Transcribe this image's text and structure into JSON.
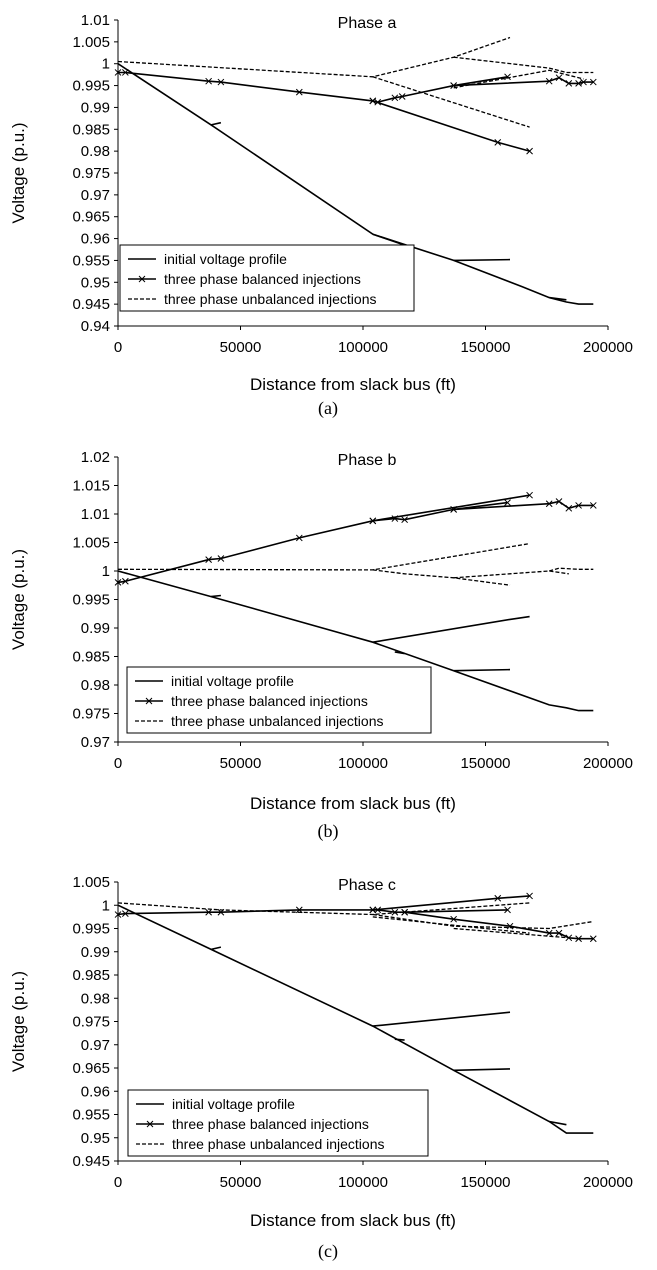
{
  "chart_data": [
    {
      "type": "line",
      "title": "Phase a",
      "caption": "(a)",
      "xlabel": "Distance from slack bus (ft)",
      "ylabel": "Voltage (p.u.)",
      "xlim": [
        0,
        200000
      ],
      "ylim": [
        0.94,
        1.01
      ],
      "xticks": [
        "0",
        "50000",
        "100000",
        "150000",
        "200000"
      ],
      "yticks": [
        "0.94",
        "0.945",
        "0.95",
        "0.955",
        "0.96",
        "0.965",
        "0.97",
        "0.975",
        "0.98",
        "0.985",
        "0.99",
        "0.995",
        "1",
        "1.005",
        "1.01"
      ],
      "legend_position": "bottom-left",
      "series": [
        {
          "name": "initial voltage profile",
          "style": "solid",
          "segments": [
            [
              [
                0,
                1.0
              ],
              [
                38000,
                0.986
              ],
              [
                104000,
                0.961
              ],
              [
                137000,
                0.955
              ],
              [
                165000,
                0.949
              ],
              [
                176000,
                0.9465
              ],
              [
                183000,
                0.9455
              ],
              [
                188000,
                0.945
              ],
              [
                194000,
                0.945
              ]
            ],
            [
              [
                38000,
                0.986
              ],
              [
                42000,
                0.9865
              ]
            ],
            [
              [
                104000,
                0.961
              ],
              [
                117000,
                0.9585
              ]
            ],
            [
              [
                137000,
                0.955
              ],
              [
                160000,
                0.9552
              ]
            ],
            [
              [
                176000,
                0.9465
              ],
              [
                183000,
                0.946
              ]
            ]
          ]
        },
        {
          "name": "three phase balanced injections",
          "style": "solid-x",
          "segments": [
            [
              [
                0,
                0.998
              ],
              [
                3000,
                0.998
              ],
              [
                37000,
                0.996
              ],
              [
                42000,
                0.9958
              ],
              [
                74000,
                0.9935
              ],
              [
                104000,
                0.9915
              ],
              [
                106000,
                0.9912
              ],
              [
                113000,
                0.9922
              ],
              [
                116000,
                0.9925
              ],
              [
                137000,
                0.995
              ],
              [
                176000,
                0.996
              ],
              [
                180000,
                0.9968
              ],
              [
                184000,
                0.9955
              ],
              [
                188000,
                0.9955
              ],
              [
                190000,
                0.9958
              ],
              [
                194000,
                0.9958
              ]
            ],
            [
              [
                104000,
                0.9915
              ],
              [
                155000,
                0.982
              ],
              [
                168000,
                0.98
              ]
            ],
            [
              [
                137000,
                0.995
              ],
              [
                159000,
                0.997
              ]
            ]
          ]
        },
        {
          "name": "three phase unbalanced injections",
          "style": "dashed",
          "segments": [
            [
              [
                0,
                1.0005
              ],
              [
                104000,
                0.997
              ],
              [
                137000,
                1.0015
              ],
              [
                160000,
                1.006
              ]
            ],
            [
              [
                137000,
                1.0015
              ],
              [
                176000,
                0.999
              ],
              [
                183000,
                0.998
              ],
              [
                194000,
                0.998
              ]
            ],
            [
              [
                104000,
                0.997
              ],
              [
                168000,
                0.9855
              ]
            ],
            [
              [
                137000,
                0.9945
              ],
              [
                176000,
                0.9985
              ],
              [
                190000,
                0.9965
              ]
            ]
          ]
        }
      ]
    },
    {
      "type": "line",
      "title": "Phase b",
      "caption": "(b)",
      "xlabel": "Distance from slack bus (ft)",
      "ylabel": "Voltage (p.u.)",
      "xlim": [
        0,
        200000
      ],
      "ylim": [
        0.97,
        1.02
      ],
      "xticks": [
        "0",
        "50000",
        "100000",
        "150000",
        "200000"
      ],
      "yticks": [
        "0.97",
        "0.975",
        "0.98",
        "0.985",
        "0.99",
        "0.995",
        "1",
        "1.005",
        "1.01",
        "1.015",
        "1.02"
      ],
      "legend_position": "bottom-left",
      "series": [
        {
          "name": "initial voltage profile",
          "style": "solid",
          "segments": [
            [
              [
                0,
                1.0
              ],
              [
                38000,
                0.9955
              ],
              [
                104000,
                0.9875
              ],
              [
                137000,
                0.9825
              ],
              [
                176000,
                0.9765
              ],
              [
                183000,
                0.976
              ],
              [
                188000,
                0.9755
              ],
              [
                194000,
                0.9755
              ]
            ],
            [
              [
                38000,
                0.9955
              ],
              [
                42000,
                0.9957
              ]
            ],
            [
              [
                104000,
                0.9875
              ],
              [
                160000,
                0.9915
              ],
              [
                168000,
                0.992
              ]
            ],
            [
              [
                113000,
                0.9858
              ],
              [
                117000,
                0.9855
              ]
            ],
            [
              [
                137000,
                0.9825
              ],
              [
                160000,
                0.9827
              ]
            ]
          ]
        },
        {
          "name": "three phase balanced injections",
          "style": "solid-x",
          "segments": [
            [
              [
                0,
                0.998
              ],
              [
                3000,
                0.9982
              ],
              [
                37000,
                1.002
              ],
              [
                42000,
                1.0022
              ],
              [
                74000,
                1.0058
              ],
              [
                104000,
                1.0088
              ],
              [
                113000,
                1.0092
              ],
              [
                117000,
                1.009
              ],
              [
                137000,
                1.0108
              ],
              [
                176000,
                1.0118
              ],
              [
                180000,
                1.0122
              ],
              [
                184000,
                1.011
              ],
              [
                188000,
                1.0115
              ],
              [
                194000,
                1.0115
              ]
            ],
            [
              [
                104000,
                1.0088
              ],
              [
                168000,
                1.0133
              ]
            ],
            [
              [
                137000,
                1.0108
              ],
              [
                159000,
                1.012
              ]
            ]
          ]
        },
        {
          "name": "three phase unbalanced injections",
          "style": "dashed",
          "segments": [
            [
              [
                0,
                1.0003
              ],
              [
                104000,
                1.0002
              ],
              [
                168000,
                1.0048
              ]
            ],
            [
              [
                104000,
                1.0002
              ],
              [
                117000,
                0.9995
              ],
              [
                137000,
                0.9988
              ],
              [
                160000,
                0.9975
              ]
            ],
            [
              [
                137000,
                0.9988
              ],
              [
                176000,
                1.0
              ],
              [
                184000,
                0.9995
              ]
            ],
            [
              [
                176000,
                1.0
              ],
              [
                180000,
                1.0005
              ],
              [
                188000,
                1.0003
              ],
              [
                194000,
                1.0003
              ]
            ]
          ]
        }
      ]
    },
    {
      "type": "line",
      "title": "Phase c",
      "caption": "(c)",
      "xlabel": "Distance from slack bus (ft)",
      "ylabel": "Voltage (p.u.)",
      "xlim": [
        0,
        200000
      ],
      "ylim": [
        0.945,
        1.005
      ],
      "xticks": [
        "0",
        "50000",
        "100000",
        "150000",
        "200000"
      ],
      "yticks": [
        "0.945",
        "0.95",
        "0.955",
        "0.96",
        "0.965",
        "0.97",
        "0.975",
        "0.98",
        "0.985",
        "0.99",
        "0.995",
        "1",
        "1.005"
      ],
      "legend_position": "bottom-left",
      "series": [
        {
          "name": "initial voltage profile",
          "style": "solid",
          "segments": [
            [
              [
                0,
                1.0
              ],
              [
                38000,
                0.9905
              ],
              [
                104000,
                0.974
              ],
              [
                137000,
                0.9645
              ],
              [
                176000,
                0.9535
              ],
              [
                183000,
                0.951
              ],
              [
                188000,
                0.951
              ],
              [
                194000,
                0.951
              ]
            ],
            [
              [
                38000,
                0.9905
              ],
              [
                42000,
                0.991
              ]
            ],
            [
              [
                104000,
                0.974
              ],
              [
                160000,
                0.977
              ]
            ],
            [
              [
                113000,
                0.9712
              ],
              [
                117000,
                0.971
              ]
            ],
            [
              [
                137000,
                0.9645
              ],
              [
                160000,
                0.9648
              ]
            ],
            [
              [
                176000,
                0.9535
              ],
              [
                183000,
                0.9528
              ]
            ]
          ]
        },
        {
          "name": "three phase balanced injections",
          "style": "solid-x",
          "segments": [
            [
              [
                0,
                0.998
              ],
              [
                3000,
                0.9982
              ],
              [
                37000,
                0.9985
              ],
              [
                42000,
                0.9985
              ],
              [
                74000,
                0.999
              ],
              [
                104000,
                0.999
              ],
              [
                106000,
                0.999
              ],
              [
                113000,
                0.9985
              ],
              [
                117000,
                0.9985
              ],
              [
                137000,
                0.997
              ],
              [
                160000,
                0.9955
              ],
              [
                176000,
                0.994
              ],
              [
                180000,
                0.994
              ],
              [
                184000,
                0.993
              ],
              [
                188000,
                0.9928
              ],
              [
                194000,
                0.9928
              ]
            ],
            [
              [
                104000,
                0.999
              ],
              [
                155000,
                1.0015
              ],
              [
                168000,
                1.002
              ]
            ],
            [
              [
                117000,
                0.9985
              ],
              [
                159000,
                0.999
              ]
            ]
          ]
        },
        {
          "name": "three phase unbalanced injections",
          "style": "dashed",
          "segments": [
            [
              [
                0,
                1.0005
              ],
              [
                42000,
                0.999
              ],
              [
                104000,
                0.998
              ],
              [
                168000,
                1.0005
              ]
            ],
            [
              [
                104000,
                0.998
              ],
              [
                137000,
                0.9955
              ],
              [
                176000,
                0.995
              ],
              [
                194000,
                0.9965
              ]
            ],
            [
              [
                104000,
                0.9975
              ],
              [
                168000,
                0.994
              ]
            ],
            [
              [
                137000,
                0.995
              ],
              [
                184000,
                0.993
              ]
            ]
          ]
        }
      ]
    }
  ]
}
